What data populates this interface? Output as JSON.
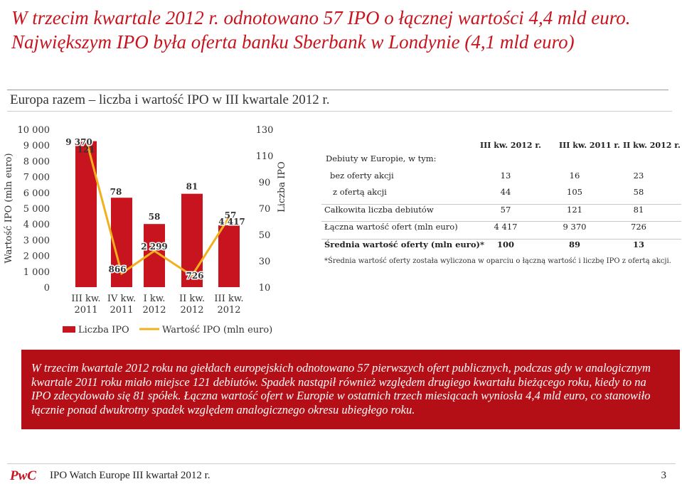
{
  "headline": "W trzecim kwartale 2012 r. odnotowano 57 IPO o łącznej wartości 4,4 mld euro. Największym IPO była oferta banku Sberbank w Londynie (4,1 mld euro)",
  "section_title": "Europa razem – liczba i wartość IPO w III kwartale 2012 r.",
  "colors": {
    "bar": "#c8141e",
    "line": "#f2b01e",
    "headline": "#c8141e",
    "box": "#b40e16"
  },
  "chart_data": {
    "type": "bar",
    "categories": [
      [
        "III kw.",
        "2011"
      ],
      [
        "IV kw.",
        "2011"
      ],
      [
        "I kw.",
        "2012"
      ],
      [
        "II kw.",
        "2012"
      ],
      [
        "III kw.",
        "2012"
      ]
    ],
    "series": [
      {
        "name": "Liczba IPO",
        "type": "bar",
        "axis": "right",
        "values": [
          121,
          78,
          58,
          81,
          57
        ],
        "labels": [
          "121",
          "78",
          "58",
          "81",
          "57"
        ]
      },
      {
        "name": "Wartość IPO (mln euro)",
        "type": "line",
        "axis": "left",
        "values": [
          9370,
          866,
          2299,
          726,
          4417
        ],
        "labels": [
          "9 370",
          "866",
          "2 299",
          "726",
          "4 417"
        ]
      }
    ],
    "left_axis": {
      "label": "Wartość IPO (mln euro)",
      "ylim": [
        0,
        10000
      ],
      "ticks": [
        "0",
        "1 000",
        "2 000",
        "3 000",
        "4 000",
        "5 000",
        "6 000",
        "7 000",
        "8 000",
        "9 000",
        "10 000"
      ]
    },
    "right_axis": {
      "label": "Liczba IPO",
      "ylim": [
        10,
        130
      ],
      "ticks": [
        "10",
        "30",
        "50",
        "70",
        "90",
        "110",
        "130"
      ]
    },
    "legend": [
      "Liczba IPO",
      "Wartość IPO (mln euro)"
    ],
    "legend_position": "bottom",
    "grid": false
  },
  "table": {
    "headers": [
      "III kw. 2012 r.",
      "III kw. 2011 r.",
      "II kw. 2012 r."
    ],
    "rows": [
      {
        "label": "Debiuty w Europie, w tym:",
        "values": [
          "",
          "",
          ""
        ]
      },
      {
        "label": "bez oferty akcji",
        "values": [
          "13",
          "16",
          "23"
        ]
      },
      {
        "label": "z ofertą akcji",
        "values": [
          "44",
          "105",
          "58"
        ]
      },
      {
        "label": "Całkowita liczba debiutów",
        "values": [
          "57",
          "121",
          "81"
        ]
      },
      {
        "label": "Łączna wartość ofert (mln euro)",
        "values": [
          "4 417",
          "9 370",
          "726"
        ]
      },
      {
        "label": "Średnia wartość oferty (mln euro)*",
        "values": [
          "100",
          "89",
          "13"
        ]
      }
    ],
    "footnote": "*Średnia wartość oferty została wyliczona w oparciu o łączną wartość i liczbę IPO z ofertą akcji."
  },
  "summary": "W trzecim kwartale 2012 roku na giełdach europejskich odnotowano 57 pierwszych ofert publicznych, podczas gdy w analogicznym kwartale 2011 roku miało miejsce 121 debiutów. Spadek nastąpił również względem drugiego kwartału bieżącego roku, kiedy to na IPO zdecydowało się 81 spółek. Łączna wartość ofert w Europie w ostatnich trzech miesiącach wyniosła 4,4 mld euro, co stanowiło łącznie ponad dwukrotny spadek względem analogicznego okresu ubiegłego roku.",
  "footer": {
    "logo": "PwC",
    "title": "IPO Watch Europe III kwartał 2012 r.",
    "page": "3"
  }
}
